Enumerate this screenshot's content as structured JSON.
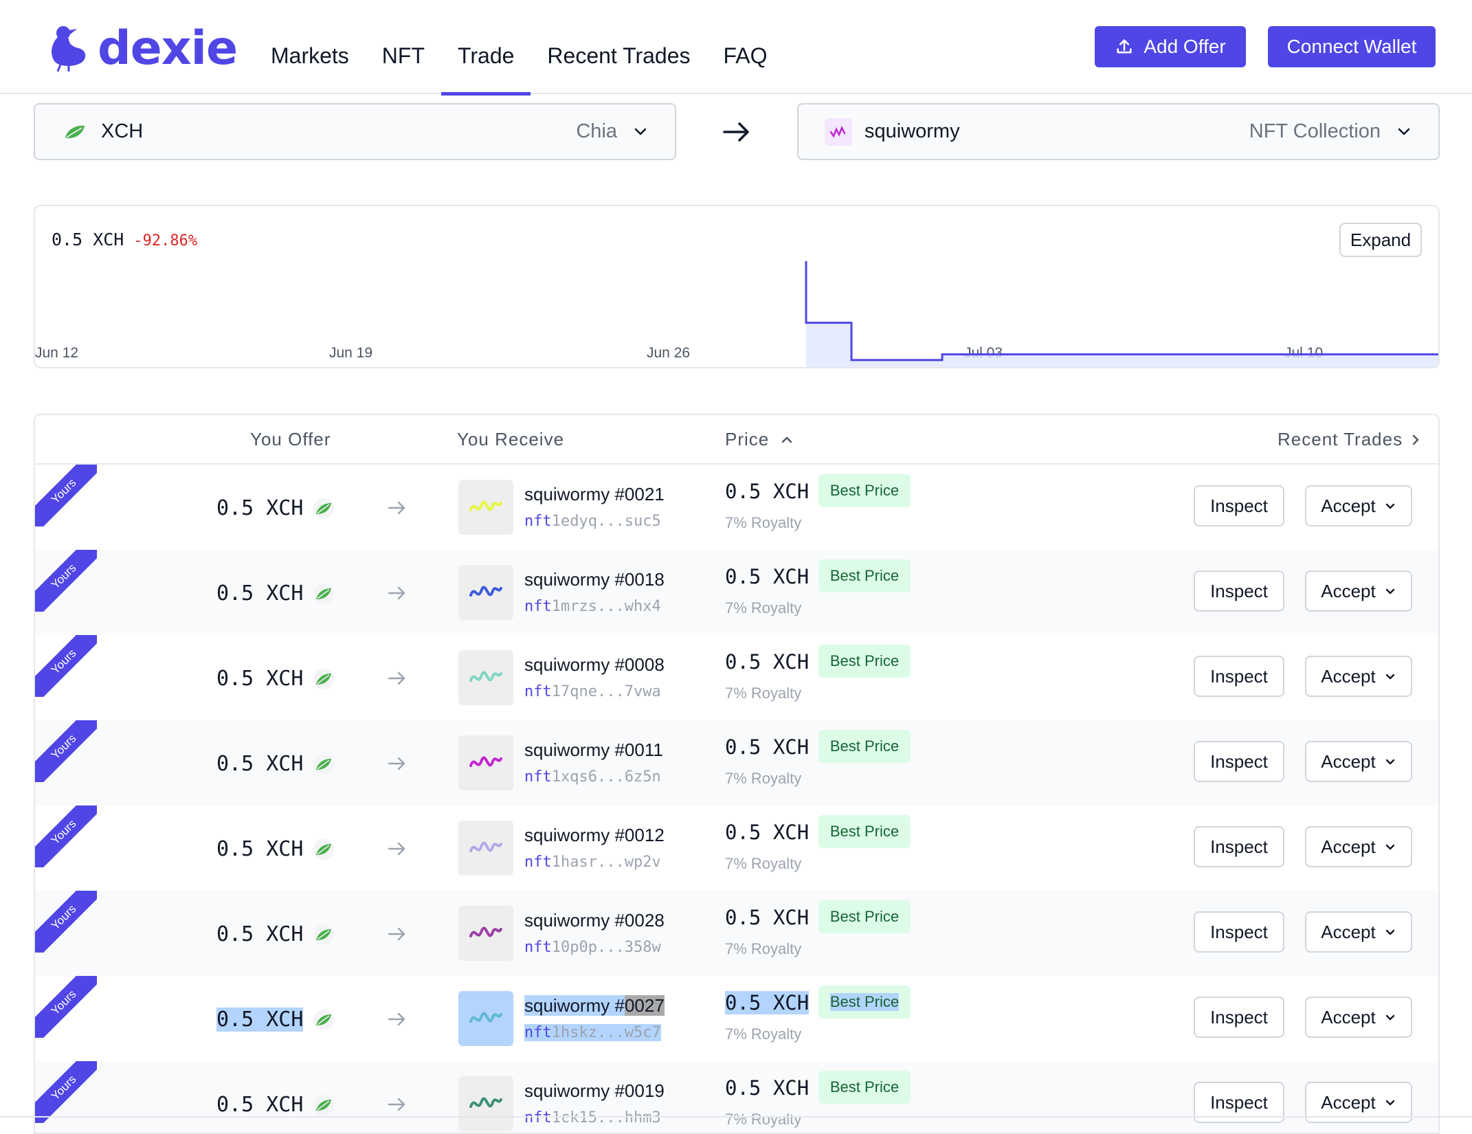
{
  "brand": {
    "name": "dexie",
    "color": "#4f46e5"
  },
  "nav": [
    {
      "label": "Markets"
    },
    {
      "label": "NFT"
    },
    {
      "label": "Trade",
      "active": true
    },
    {
      "label": "Recent Trades"
    },
    {
      "label": "FAQ"
    }
  ],
  "header_buttons": {
    "add_offer": "Add Offer",
    "connect_wallet": "Connect Wallet"
  },
  "pair": {
    "from": {
      "name": "XCH",
      "type": "Chia",
      "icon": "chia-leaf-icon"
    },
    "to": {
      "name": "squiwormy",
      "type": "NFT Collection",
      "icon": "squiwormy-icon"
    }
  },
  "chart": {
    "price": "0.5 XCH",
    "change": "-92.86%",
    "expand_label": "Expand"
  },
  "chart_data": {
    "type": "line",
    "x_tick_labels": [
      "Jun 12",
      "Jun 19",
      "Jun 26",
      "Jul 03",
      "Jul 10"
    ],
    "x": [
      "Jun 12",
      "Jun 29",
      "Jun 29",
      "Jun 30",
      "Jul 01",
      "Jul 03",
      "Jul 13"
    ],
    "y": [
      null,
      7,
      2.7,
      0.1,
      0.5,
      0.5,
      0.5
    ],
    "color": "#4f46e5",
    "grid": false
  },
  "table": {
    "headers": {
      "offer": "You Offer",
      "receive": "You Receive",
      "price": "Price",
      "recent": "Recent Trades"
    },
    "ribbon_label": "Yours",
    "inspect_label": "Inspect",
    "accept_label": "Accept",
    "best_label": "Best Price",
    "rows": [
      {
        "offer": "0.5 XCH",
        "name": "squiwormy #0021",
        "id_prefix": "nft",
        "id_rest": "1edyq...suc5",
        "price": "0.5 XCH",
        "royalty": "7% Royalty",
        "color": "#e6f542"
      },
      {
        "offer": "0.5 XCH",
        "name": "squiwormy #0018",
        "id_prefix": "nft",
        "id_rest": "1mrzs...whx4",
        "price": "0.5 XCH",
        "royalty": "7% Royalty",
        "color": "#3b5bdb"
      },
      {
        "offer": "0.5 XCH",
        "name": "squiwormy #0008",
        "id_prefix": "nft",
        "id_rest": "17qne...7vwa",
        "price": "0.5 XCH",
        "royalty": "7% Royalty",
        "color": "#7fd6c2"
      },
      {
        "offer": "0.5 XCH",
        "name": "squiwormy #0011",
        "id_prefix": "nft",
        "id_rest": "1xqs6...6z5n",
        "price": "0.5 XCH",
        "royalty": "7% Royalty",
        "color": "#c026d3"
      },
      {
        "offer": "0.5 XCH",
        "name": "squiwormy #0012",
        "id_prefix": "nft",
        "id_rest": "1hasr...wp2v",
        "price": "0.5 XCH",
        "royalty": "7% Royalty",
        "color": "#b4a8e8"
      },
      {
        "offer": "0.5 XCH",
        "name": "squiwormy #0028",
        "id_prefix": "nft",
        "id_rest": "10p0p...358w",
        "price": "0.5 XCH",
        "royalty": "7% Royalty",
        "color": "#9b3fa6"
      },
      {
        "offer": "0.5 XCH",
        "name": "squiwormy #0027",
        "id_prefix": "nft",
        "id_rest": "1hskz...w5c7",
        "price": "0.5 XCH",
        "royalty": "7% Royalty",
        "color": "#5fb8d6",
        "selected": true
      },
      {
        "offer": "0.5 XCH",
        "name": "squiwormy #0019",
        "id_prefix": "nft",
        "id_rest": "1ck15...hhm3",
        "price": "0.5 XCH",
        "royalty": "7% Royalty",
        "color": "#3f8f7a"
      }
    ]
  }
}
